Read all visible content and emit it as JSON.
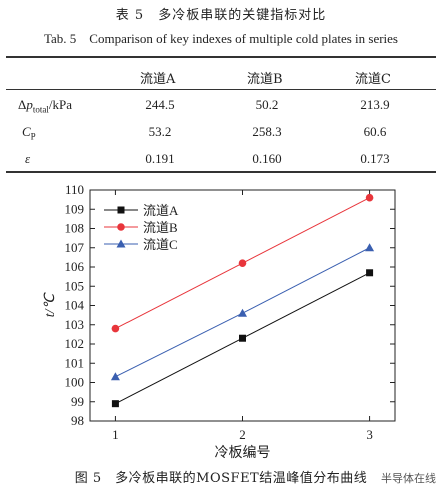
{
  "table": {
    "caption_cn": "表 5　多冷板串联的关键指标对比",
    "caption_en": "Tab. 5　Comparison of key indexes of multiple cold plates in series",
    "headers": [
      "流道A",
      "流道B",
      "流道C"
    ],
    "rows": [
      {
        "label": "Δp_total/kPa",
        "values": [
          "244.5",
          "50.2",
          "213.9"
        ]
      },
      {
        "label": "C_P",
        "values": [
          "53.2",
          "258.3",
          "60.6"
        ]
      },
      {
        "label": "ε",
        "values": [
          "0.191",
          "0.160",
          "0.173"
        ]
      }
    ]
  },
  "chart_data": {
    "type": "line",
    "x": [
      1,
      2,
      3
    ],
    "xlabel": "冷板编号",
    "ylabel": "t/℃",
    "xlim": [
      0.8,
      3.2
    ],
    "ylim": [
      98,
      110
    ],
    "xticks": [
      "1",
      "2",
      "3"
    ],
    "yticks": [
      "98",
      "99",
      "100",
      "101",
      "102",
      "103",
      "104",
      "105",
      "106",
      "107",
      "108",
      "109",
      "110"
    ],
    "legend_position": "top-left",
    "series": [
      {
        "name": "流道A",
        "values": [
          98.9,
          102.3,
          105.7
        ],
        "color": "#111111",
        "marker": "square"
      },
      {
        "name": "流道B",
        "values": [
          102.8,
          106.2,
          109.6
        ],
        "color": "#e8353b",
        "marker": "circle"
      },
      {
        "name": "流道C",
        "values": [
          100.3,
          103.6,
          107.0
        ],
        "color": "#3a5fb0",
        "marker": "triangle"
      }
    ]
  },
  "figure_caption": "图 5　多冷板串联的MOSFET结温峰值分布曲线",
  "watermark": "半导体在线"
}
